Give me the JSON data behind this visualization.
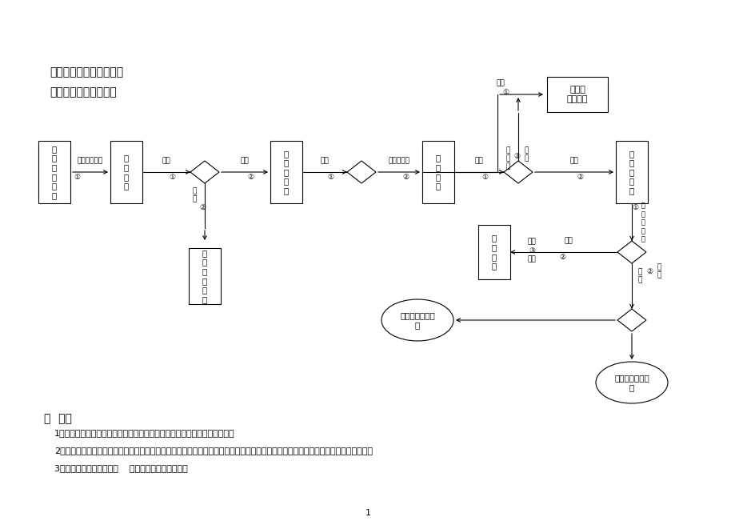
{
  "title1": "程序名称：招聘申请程序",
  "title2": "主管部门：综合管理部",
  "bg_color": "#ffffff",
  "note_title": "说  明：",
  "notes": [
    "1、公司部门经理（含）以上管理人员根据工作需要有申请招聘员工的权力。",
    "2、执行总裁审阅「招聘申请表」如有编制可直接审批，交综合管理部经理，如无编制签批意见上报执行董事或签否交综合管理部经理。",
    "3、主用表单：招聘申请表    年度人力需求计划汇总表"
  ],
  "page_num": "1"
}
